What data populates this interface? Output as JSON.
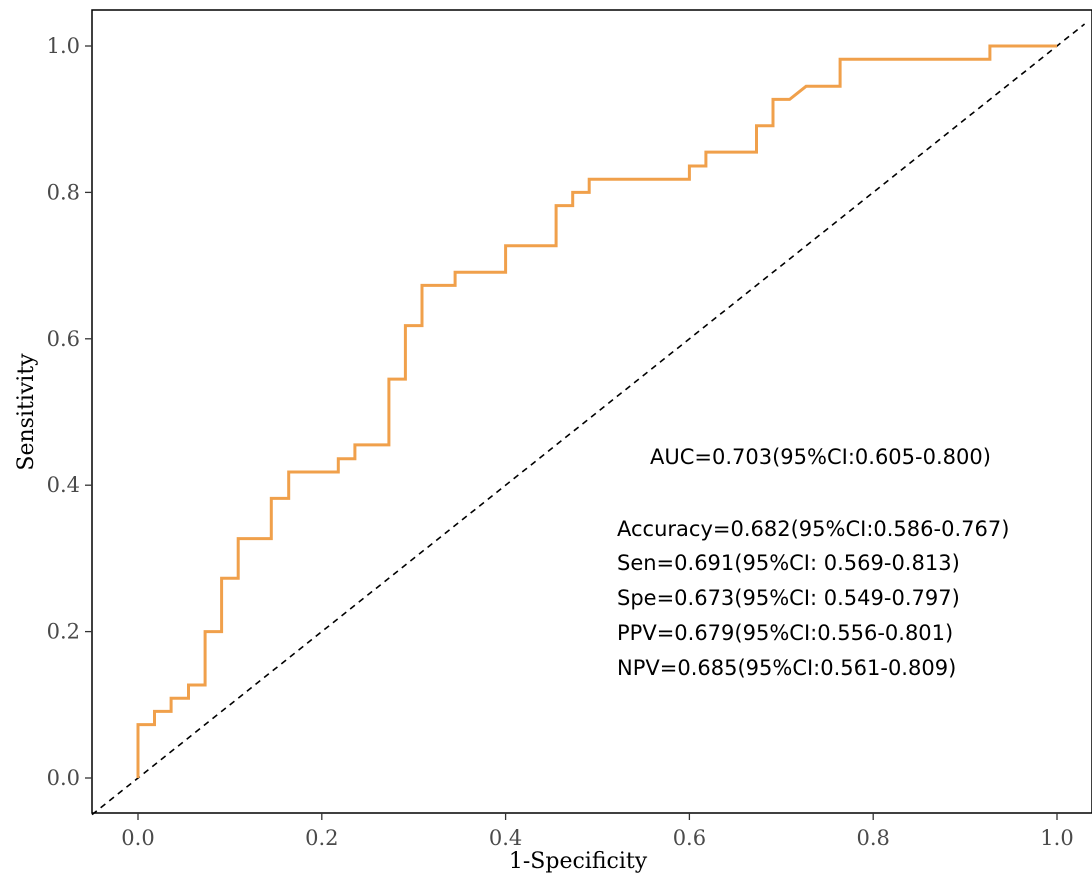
{
  "chart_data": {
    "type": "line",
    "xlabel": "1-Specificity",
    "ylabel": "Sensitivity",
    "xlim": [
      -0.05,
      1.03
    ],
    "ylim": [
      -0.05,
      1.05
    ],
    "x_ticks": [
      "0.0",
      "0.2",
      "0.4",
      "0.6",
      "0.8",
      "1.0"
    ],
    "y_ticks": [
      "0.0",
      "0.2",
      "0.4",
      "0.6",
      "0.8",
      "1.0"
    ],
    "grid": false,
    "reference_line": {
      "from": [
        -0.05,
        -0.05
      ],
      "to": [
        1.03,
        1.03
      ],
      "style": "dashed",
      "color": "#000000"
    },
    "series": [
      {
        "color": "#f0a04b",
        "points": [
          [
            0.0,
            0.0
          ],
          [
            0.0,
            0.073
          ],
          [
            0.018,
            0.073
          ],
          [
            0.018,
            0.091
          ],
          [
            0.036,
            0.091
          ],
          [
            0.036,
            0.109
          ],
          [
            0.055,
            0.109
          ],
          [
            0.055,
            0.127
          ],
          [
            0.073,
            0.127
          ],
          [
            0.073,
            0.2
          ],
          [
            0.091,
            0.2
          ],
          [
            0.091,
            0.273
          ],
          [
            0.109,
            0.273
          ],
          [
            0.109,
            0.327
          ],
          [
            0.145,
            0.327
          ],
          [
            0.145,
            0.382
          ],
          [
            0.164,
            0.382
          ],
          [
            0.164,
            0.418
          ],
          [
            0.218,
            0.418
          ],
          [
            0.218,
            0.436
          ],
          [
            0.236,
            0.436
          ],
          [
            0.236,
            0.455
          ],
          [
            0.273,
            0.455
          ],
          [
            0.273,
            0.545
          ],
          [
            0.291,
            0.545
          ],
          [
            0.291,
            0.618
          ],
          [
            0.309,
            0.618
          ],
          [
            0.309,
            0.673
          ],
          [
            0.345,
            0.673
          ],
          [
            0.345,
            0.691
          ],
          [
            0.4,
            0.691
          ],
          [
            0.4,
            0.727
          ],
          [
            0.455,
            0.727
          ],
          [
            0.455,
            0.782
          ],
          [
            0.473,
            0.782
          ],
          [
            0.473,
            0.8
          ],
          [
            0.491,
            0.8
          ],
          [
            0.491,
            0.818
          ],
          [
            0.6,
            0.818
          ],
          [
            0.6,
            0.836
          ],
          [
            0.618,
            0.836
          ],
          [
            0.618,
            0.855
          ],
          [
            0.673,
            0.855
          ],
          [
            0.673,
            0.891
          ],
          [
            0.691,
            0.891
          ],
          [
            0.691,
            0.927
          ],
          [
            0.709,
            0.927
          ],
          [
            0.727,
            0.945
          ],
          [
            0.764,
            0.945
          ],
          [
            0.764,
            0.982
          ],
          [
            0.927,
            0.982
          ],
          [
            0.927,
            1.0
          ],
          [
            1.0,
            1.0
          ]
        ]
      }
    ],
    "annotations": [
      "AUC=0.703(95%CI:0.605-0.800)",
      "Accuracy=0.682(95%CI:0.586-0.767)",
      "Sen=0.691(95%CI: 0.569-0.813)",
      "Spe=0.673(95%CI: 0.549-0.797)",
      "PPV=0.679(95%CI:0.556-0.801)",
      "NPV=0.685(95%CI:0.561-0.809)"
    ],
    "colors": {
      "curve": "#f0a04b",
      "axis": "#000000",
      "tick_label": "#4a4a4a"
    }
  }
}
